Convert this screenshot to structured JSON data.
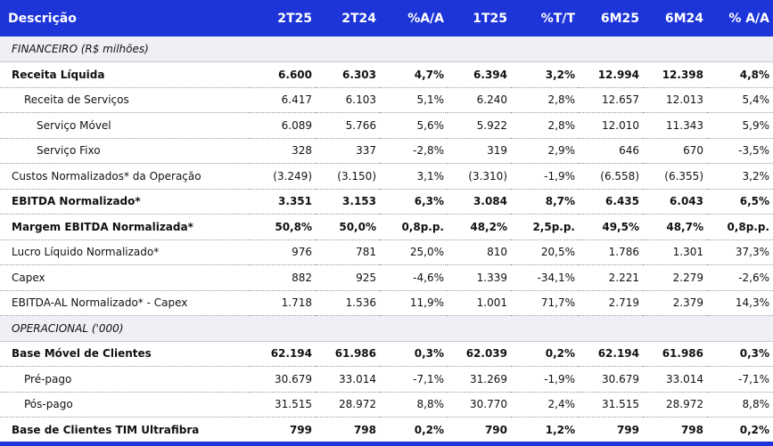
{
  "header": [
    "Descrição",
    "2T25",
    "2T24",
    "%A/A",
    "1T25",
    "%T/T",
    "6M25",
    "6M24",
    "% A/A"
  ],
  "rows": [
    {
      "type": "section",
      "label": "FINANCEIRO (R$ milhões)"
    },
    {
      "type": "data",
      "bold": true,
      "indent": 0,
      "label": "Receita Líquida",
      "values": [
        "6.600",
        "6.303",
        "4,7%",
        "6.394",
        "3,2%",
        "12.994",
        "12.398",
        "4,8%"
      ]
    },
    {
      "type": "data",
      "bold": false,
      "indent": 1,
      "label": "Receita de Serviços",
      "values": [
        "6.417",
        "6.103",
        "5,1%",
        "6.240",
        "2,8%",
        "12.657",
        "12.013",
        "5,4%"
      ]
    },
    {
      "type": "data",
      "bold": false,
      "indent": 2,
      "label": "Serviço Móvel",
      "values": [
        "6.089",
        "5.766",
        "5,6%",
        "5.922",
        "2,8%",
        "12.010",
        "11.343",
        "5,9%"
      ]
    },
    {
      "type": "data",
      "bold": false,
      "indent": 2,
      "label": "Serviço Fixo",
      "values": [
        "328",
        "337",
        "-2,8%",
        "319",
        "2,9%",
        "646",
        "670",
        "-3,5%"
      ]
    },
    {
      "type": "data",
      "bold": false,
      "indent": 0,
      "label": "Custos Normalizados* da Operação",
      "values": [
        "(3.249)",
        "(3.150)",
        "3,1%",
        "(3.310)",
        "-1,9%",
        "(6.558)",
        "(6.355)",
        "3,2%"
      ]
    },
    {
      "type": "data",
      "bold": true,
      "indent": 0,
      "label": "EBITDA Normalizado*",
      "values": [
        "3.351",
        "3.153",
        "6,3%",
        "3.084",
        "8,7%",
        "6.435",
        "6.043",
        "6,5%"
      ]
    },
    {
      "type": "data",
      "bold": true,
      "indent": 0,
      "label": "Margem EBITDA Normalizada*",
      "values": [
        "50,8%",
        "50,0%",
        "0,8p.p.",
        "48,2%",
        "2,5p.p.",
        "49,5%",
        "48,7%",
        "0,8p.p."
      ]
    },
    {
      "type": "data",
      "bold": false,
      "indent": 0,
      "label": "Lucro Líquido Normalizado*",
      "values": [
        "976",
        "781",
        "25,0%",
        "810",
        "20,5%",
        "1.786",
        "1.301",
        "37,3%"
      ]
    },
    {
      "type": "data",
      "bold": false,
      "indent": 0,
      "label": "Capex",
      "values": [
        "882",
        "925",
        "-4,6%",
        "1.339",
        "-34,1%",
        "2.221",
        "2.279",
        "-2,6%"
      ]
    },
    {
      "type": "data",
      "bold": false,
      "indent": 0,
      "label": "EBITDA-AL Normalizado* - Capex",
      "values": [
        "1.718",
        "1.536",
        "11,9%",
        "1.001",
        "71,7%",
        "2.719",
        "2.379",
        "14,3%"
      ]
    },
    {
      "type": "section",
      "label": "OPERACIONAL ('000)"
    },
    {
      "type": "data",
      "bold": true,
      "indent": 0,
      "label": "Base Móvel de Clientes",
      "values": [
        "62.194",
        "61.986",
        "0,3%",
        "62.039",
        "0,2%",
        "62.194",
        "61.986",
        "0,3%"
      ]
    },
    {
      "type": "data",
      "bold": false,
      "indent": 1,
      "label": "Pré-pago",
      "values": [
        "30.679",
        "33.014",
        "-7,1%",
        "31.269",
        "-1,9%",
        "30.679",
        "33.014",
        "-7,1%"
      ]
    },
    {
      "type": "data",
      "bold": false,
      "indent": 1,
      "label": "Pós-pago",
      "values": [
        "31.515",
        "28.972",
        "8,8%",
        "30.770",
        "2,4%",
        "31.515",
        "28.972",
        "8,8%"
      ]
    },
    {
      "type": "data",
      "bold": true,
      "indent": 0,
      "label": "Base de Clientes TIM Ultrafibra",
      "values": [
        "799",
        "798",
        "0,2%",
        "790",
        "1,2%",
        "799",
        "798",
        "0,2%"
      ]
    }
  ]
}
